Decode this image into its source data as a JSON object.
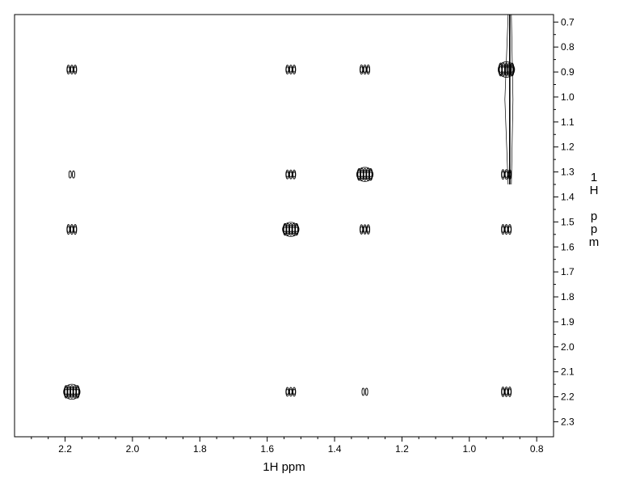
{
  "chart_data": {
    "type": "contour",
    "description_kind": "2D 1H-1H COSY NMR spectrum",
    "xlabel": "1H ppm",
    "ylabel": "1H ppm",
    "xlim": [
      2.35,
      0.75
    ],
    "ylim": [
      0.67,
      2.36
    ],
    "x_reversed": true,
    "y_reversed": true,
    "x_ticks": [
      2.2,
      2.0,
      1.8,
      1.6,
      1.4,
      1.2,
      1.0,
      0.8
    ],
    "x_tick_labels": [
      "2.2",
      "2.0",
      "1.8",
      "1.6",
      "1.4",
      "1.2",
      "1.0",
      "0.8"
    ],
    "y_ticks": [
      0.7,
      0.8,
      0.9,
      1.0,
      1.1,
      1.2,
      1.3,
      1.4,
      1.5,
      1.6,
      1.7,
      1.8,
      1.9,
      2.0,
      2.1,
      2.2,
      2.3
    ],
    "y_tick_labels": [
      "0.7",
      "0.8",
      "0.9",
      "1.0",
      "1.1",
      "1.2",
      "1.3",
      "1.4",
      "1.5",
      "1.6",
      "1.7",
      "1.8",
      "1.9",
      "2.0",
      "2.1",
      "2.2",
      "2.3"
    ],
    "y_axis_side": "right",
    "grid": false,
    "peaks": [
      {
        "x": 2.18,
        "y": 0.89,
        "intensity": 0.5
      },
      {
        "x": 1.53,
        "y": 0.89,
        "intensity": 0.5
      },
      {
        "x": 1.31,
        "y": 0.89,
        "intensity": 0.55
      },
      {
        "x": 0.89,
        "y": 0.89,
        "intensity": 1.0
      },
      {
        "x": 2.18,
        "y": 1.31,
        "intensity": 0.3
      },
      {
        "x": 1.53,
        "y": 1.31,
        "intensity": 0.5
      },
      {
        "x": 1.31,
        "y": 1.31,
        "intensity": 0.85
      },
      {
        "x": 0.89,
        "y": 1.31,
        "intensity": 0.6
      },
      {
        "x": 2.18,
        "y": 1.53,
        "intensity": 0.6
      },
      {
        "x": 1.53,
        "y": 1.53,
        "intensity": 0.85
      },
      {
        "x": 1.31,
        "y": 1.53,
        "intensity": 0.55
      },
      {
        "x": 0.89,
        "y": 1.53,
        "intensity": 0.6
      },
      {
        "x": 2.18,
        "y": 2.18,
        "intensity": 0.95
      },
      {
        "x": 1.53,
        "y": 2.18,
        "intensity": 0.5
      },
      {
        "x": 1.31,
        "y": 2.18,
        "intensity": 0.3
      },
      {
        "x": 0.89,
        "y": 2.18,
        "intensity": 0.6
      }
    ],
    "diagonal_streak": {
      "x": 0.88,
      "y_from": 0.67,
      "y_to": 1.35
    }
  }
}
